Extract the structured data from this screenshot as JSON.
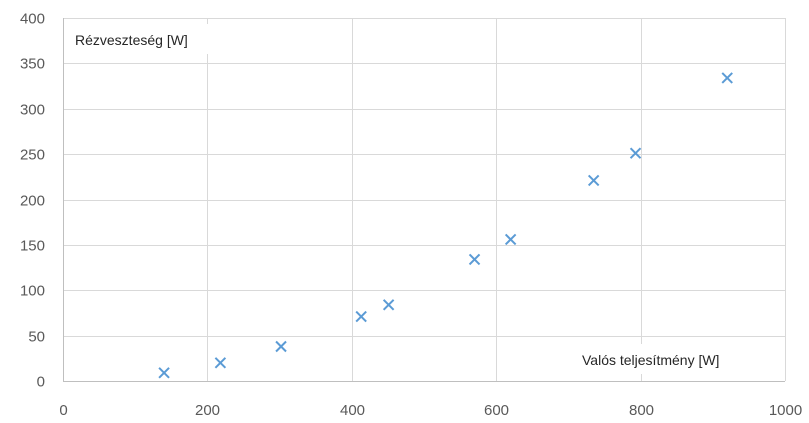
{
  "chart_data": {
    "type": "scatter",
    "title": "",
    "xlabel": "Valós teljesítmény [W]",
    "ylabel": "Rézveszteség [W]",
    "xlim": [
      0,
      1000
    ],
    "ylim": [
      0,
      400
    ],
    "x_ticks": [
      0,
      200,
      400,
      600,
      800,
      1000
    ],
    "y_ticks": [
      0,
      50,
      100,
      150,
      200,
      250,
      300,
      350,
      400
    ],
    "grid": true,
    "legend": "none",
    "marker": "x",
    "marker_color": "#5b9bd5",
    "series": [
      {
        "x": [
          140,
          218,
          302,
          413,
          451,
          570,
          620,
          735,
          793,
          920
        ],
        "y": [
          9,
          20,
          38,
          71,
          84,
          134,
          156,
          221,
          251,
          334
        ]
      }
    ]
  }
}
